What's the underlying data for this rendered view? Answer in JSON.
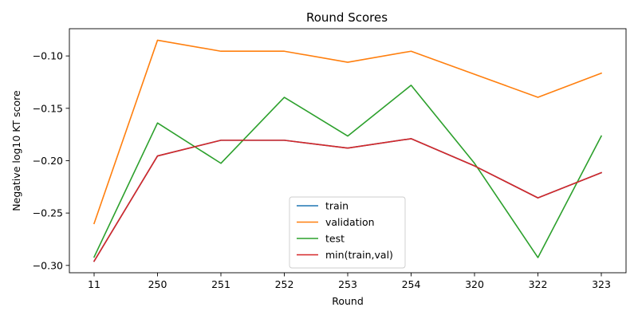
{
  "chart_data": {
    "type": "line",
    "title": "Round Scores",
    "xlabel": "Round",
    "ylabel": "Negative log10 KT score",
    "categories": [
      "11",
      "250",
      "251",
      "252",
      "253",
      "254",
      "320",
      "322",
      "323"
    ],
    "ylim": [
      -0.307,
      -0.074
    ],
    "yticks": [
      -0.3,
      -0.25,
      -0.2,
      -0.15,
      -0.1
    ],
    "ytick_labels": [
      "−0.30",
      "−0.25",
      "−0.20",
      "−0.15",
      "−0.10"
    ],
    "grid": false,
    "legend_position": "lower-center",
    "series": [
      {
        "name": "train",
        "color": "#1f77b4",
        "values": [
          -0.296,
          -0.1955,
          -0.1805,
          -0.1805,
          -0.188,
          -0.179,
          -0.205,
          -0.2355,
          -0.2115
        ]
      },
      {
        "name": "validation",
        "color": "#ff7f0e",
        "values": [
          -0.26,
          -0.085,
          -0.0955,
          -0.0955,
          -0.106,
          -0.0955,
          -0.1175,
          -0.1395,
          -0.1165
        ]
      },
      {
        "name": "test",
        "color": "#2ca02c",
        "values": [
          -0.292,
          -0.164,
          -0.2025,
          -0.1395,
          -0.1765,
          -0.128,
          -0.2025,
          -0.2925,
          -0.1765
        ]
      },
      {
        "name": "min(train,val)",
        "color": "#d62728",
        "values": [
          -0.296,
          -0.1955,
          -0.1805,
          -0.1805,
          -0.188,
          -0.179,
          -0.205,
          -0.2355,
          -0.2115
        ]
      }
    ]
  }
}
